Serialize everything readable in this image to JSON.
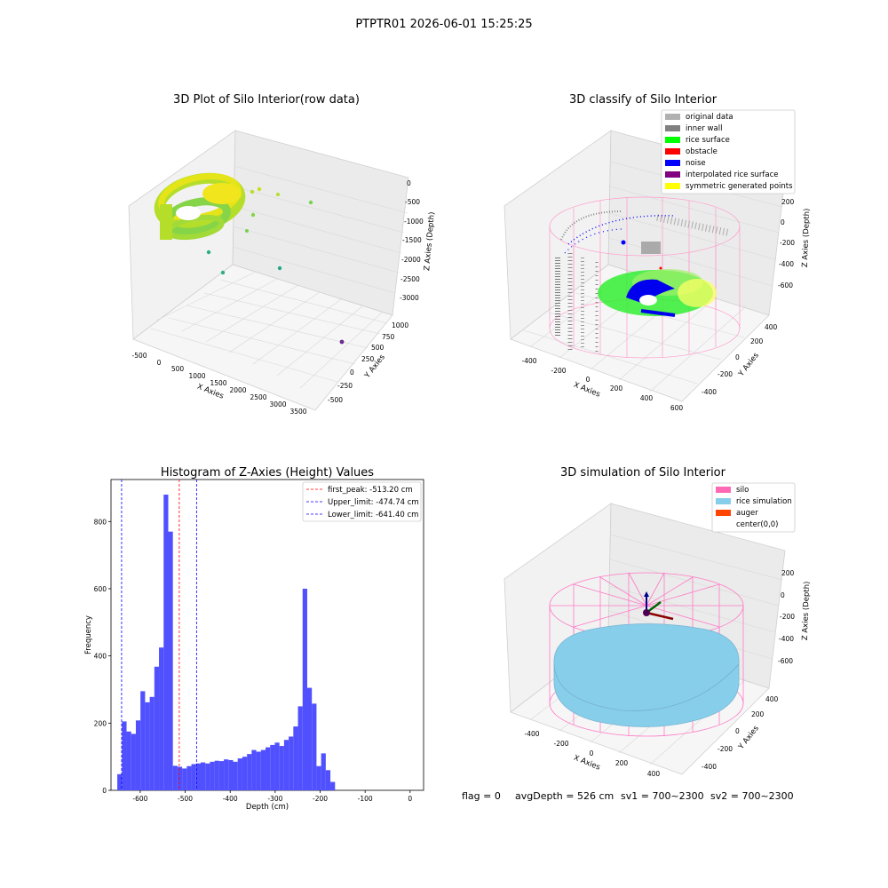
{
  "figure": {
    "suptitle": "PTPTR01 2026-06-01 15:25:25",
    "footer": {
      "flag": "flag = 0",
      "avg_depth": "avgDepth = 526 cm",
      "sv1": "sv1 = 700~2300",
      "sv2": "sv2 = 700~2300"
    }
  },
  "chart_data": [
    {
      "type": "scatter",
      "projection": "3d",
      "title": "3D Plot of Silo Interior(row data)",
      "xlabel": "X Axies",
      "ylabel": "Y Axies",
      "zlabel": "Z Axies (Depth)",
      "x_ticks": [
        "-500",
        "0",
        "500",
        "1000",
        "1500",
        "2000",
        "2500",
        "3000",
        "3500"
      ],
      "y_ticks": [
        "-500",
        "-250",
        "0",
        "250",
        "500",
        "750",
        "1000"
      ],
      "z_ticks": [
        "0",
        "-500",
        "-1000",
        "-1500",
        "-2000",
        "-2500",
        "-3000"
      ],
      "colormap": [
        "#2ab07f",
        "#7ad151",
        "#bddf26",
        "#fde725"
      ],
      "outliers": [
        {
          "x": 1400,
          "y": 600,
          "z": -800,
          "color": "#86d549"
        },
        {
          "x": 2200,
          "y": 900,
          "z": -500,
          "color": "#7ad151"
        },
        {
          "x": 200,
          "y": 300,
          "z": -1600,
          "color": "#7ad151"
        },
        {
          "x": 600,
          "y": 200,
          "z": -2200,
          "color": "#2ab07f"
        },
        {
          "x": 2400,
          "y": 700,
          "z": -2100,
          "color": "#2ab07f"
        },
        {
          "x": 3200,
          "y": -300,
          "z": -2900,
          "color": "#6a2c8e"
        }
      ]
    },
    {
      "type": "scatter",
      "projection": "3d",
      "title": "3D classify of Silo Interior",
      "xlabel": "X Axies",
      "ylabel": "Y Axies",
      "zlabel": "Z Axies (Depth)",
      "x_ticks": [
        "-400",
        "-200",
        "0",
        "200",
        "400",
        "600"
      ],
      "y_ticks": [
        "-400",
        "-200",
        "0",
        "200",
        "400"
      ],
      "z_ticks": [
        "200",
        "0",
        "-200",
        "-400",
        "-600"
      ],
      "legend": [
        {
          "label": "original data",
          "color": "#b0b0b0"
        },
        {
          "label": "inner wall",
          "color": "#808080"
        },
        {
          "label": "rice surface",
          "color": "#00ff00"
        },
        {
          "label": "obstacle",
          "color": "#ff0000"
        },
        {
          "label": "noise",
          "color": "#0000ff"
        },
        {
          "label": "interpolated rice surface",
          "color": "#800080"
        },
        {
          "label": "symmetric generated points",
          "color": "#ffff00"
        }
      ]
    },
    {
      "type": "bar",
      "title": "Histogram of Z-Axies (Height) Values",
      "xlabel": "Depth (cm)",
      "ylabel": "Frequency",
      "xlim": [
        -665,
        30
      ],
      "ylim": [
        0,
        925
      ],
      "x_ticks": [
        -600,
        -500,
        -400,
        -300,
        -200,
        -100,
        0
      ],
      "y_ticks": [
        0,
        200,
        400,
        600,
        800
      ],
      "bin_width": 10.3,
      "bin_start": -651,
      "bar_color": "#5050ff",
      "values": [
        48,
        205,
        175,
        168,
        208,
        295,
        262,
        278,
        368,
        425,
        880,
        770,
        73,
        70,
        65,
        72,
        78,
        80,
        83,
        80,
        85,
        88,
        87,
        92,
        90,
        85,
        95,
        100,
        108,
        120,
        115,
        120,
        128,
        135,
        142,
        132,
        150,
        160,
        190,
        250,
        600,
        305,
        258,
        72,
        110,
        60,
        25
      ],
      "reference_lines": [
        {
          "label": "first_peak: -513.20 cm",
          "x": -513.2,
          "color": "#ff0000"
        },
        {
          "label": "Upper_limit: -474.74 cm",
          "x": -474.74,
          "color": "#0000ff"
        },
        {
          "label": "Lower_limit: -641.40 cm",
          "x": -641.4,
          "color": "#0000ff"
        }
      ]
    },
    {
      "type": "scatter",
      "projection": "3d",
      "title": "3D simulation of Silo Interior",
      "xlabel": "X Axies",
      "ylabel": "Y Axies",
      "zlabel": "Z Axies (Depth)",
      "x_ticks": [
        "-400",
        "-200",
        "0",
        "200",
        "400"
      ],
      "y_ticks": [
        "-400",
        "-200",
        "0",
        "200",
        "400"
      ],
      "z_ticks": [
        "200",
        "0",
        "-200",
        "-400",
        "-600"
      ],
      "legend": [
        {
          "label": "silo",
          "color": "#ff69b4"
        },
        {
          "label": "rice simulation",
          "color": "#87ceeb"
        },
        {
          "label": "auger",
          "color": "#ff4500"
        },
        {
          "label": "center(0,0)",
          "color": "#ffffff"
        }
      ]
    }
  ]
}
